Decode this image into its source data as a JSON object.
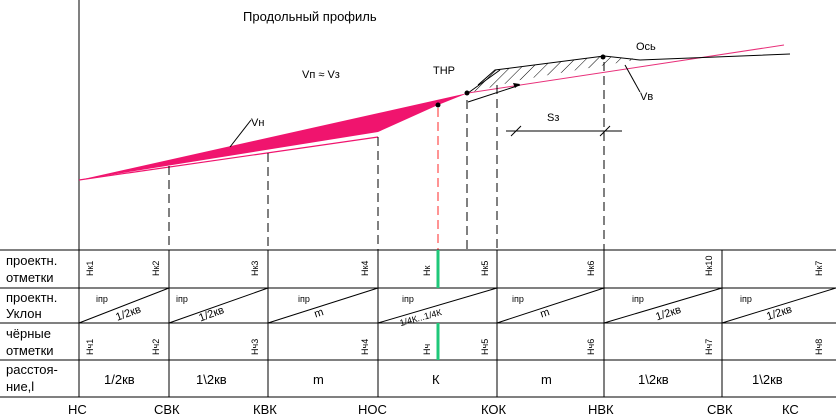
{
  "title": "Продольный профиль",
  "labels": {
    "volume_eq": "Vп ≈ Vз",
    "vn": "Vн",
    "vv": "Vв",
    "thr": "ТНР",
    "axis": "Ось",
    "sz": "Sз"
  },
  "rows": [
    {
      "label1": "проектн.",
      "label2": "отметки"
    },
    {
      "label1": "проектн.",
      "label2": "Уклон"
    },
    {
      "label1": "чёрные",
      "label2": "отметки"
    },
    {
      "label1": "расстоя-",
      "label2": "ние,l"
    }
  ],
  "design_marks": [
    "Hк1",
    "Hк2",
    "Hк3",
    "Hк4",
    "Hк",
    "Hк5",
    "Hк6",
    "Hк10",
    "Hк7"
  ],
  "slopes": [
    {
      "i": "iпр",
      "v": "1/2кв"
    },
    {
      "i": "iпр",
      "v": "1/2кв"
    },
    {
      "i": "iпр",
      "v": "m"
    },
    {
      "i": "iпр",
      "v": "1/4К...1/4К"
    },
    {
      "i": "iпр",
      "v": "m"
    },
    {
      "i": "iпр",
      "v": "1/2кв"
    },
    {
      "i": "iпр",
      "v": "1/2кв"
    }
  ],
  "black_marks": [
    "Hч1",
    "Hч2",
    "Hч3",
    "Hч4",
    "Hч",
    "Hч5",
    "Hч6",
    "Hч7",
    "Hч8"
  ],
  "distances": [
    "1/2кв",
    "1\\2кв",
    "m",
    "К",
    "m",
    "1\\2кв",
    "1\\2кв"
  ],
  "stations": [
    "НС",
    "СВК",
    "КВК",
    "НОС",
    "КОК",
    "НВК",
    "СВК",
    "КС"
  ],
  "colors": {
    "fill": "#f0146e",
    "green": "#1fc87a",
    "red": "#ff2a2a",
    "axis": "#e8307a"
  }
}
